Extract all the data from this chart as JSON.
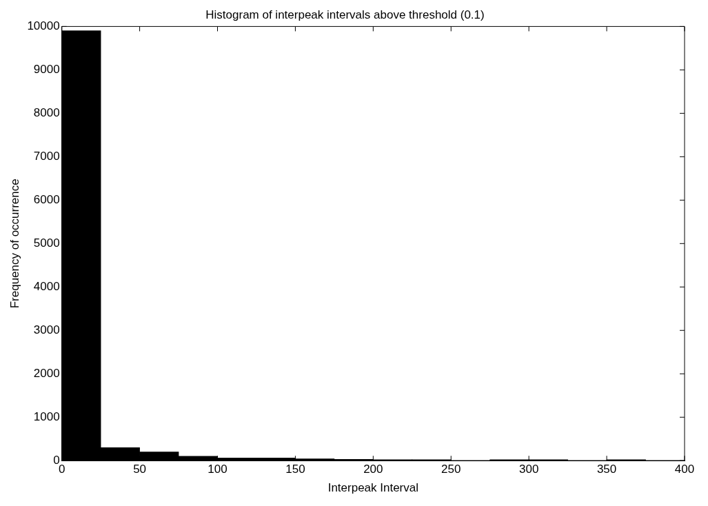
{
  "chart_data": {
    "type": "histogram",
    "title": "Histogram of interpeak intervals above threshold (0.1)",
    "xlabel": "Interpeak Interval",
    "ylabel": "Frequency of occurrence",
    "bins": [
      0,
      25,
      50,
      75,
      100,
      125,
      150,
      175,
      200,
      225,
      250,
      275,
      300,
      325,
      350,
      375,
      400
    ],
    "values": [
      9900,
      300,
      200,
      100,
      60,
      60,
      40,
      30,
      20,
      20,
      0,
      20,
      20,
      0,
      20,
      0
    ],
    "color": "#000000",
    "xlim": [
      0,
      400
    ],
    "xticks": [
      0,
      50,
      100,
      150,
      200,
      250,
      300,
      350,
      400
    ],
    "ylim": [
      0,
      10000
    ],
    "yticks": [
      0,
      1000,
      2000,
      3000,
      4000,
      5000,
      6000,
      7000,
      8000,
      9000,
      10000
    ],
    "grid": false,
    "legend": false
  }
}
